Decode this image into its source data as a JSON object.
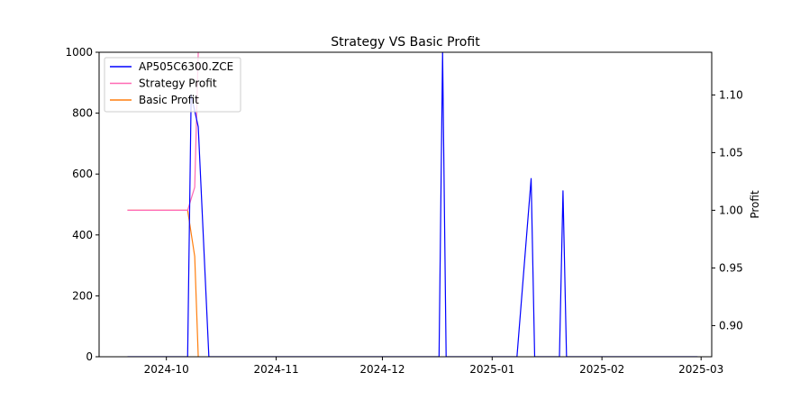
{
  "chart_data": {
    "type": "line",
    "title": "Strategy VS Basic Profit",
    "xlabel": "",
    "ylabel": "",
    "y2label": "Profit",
    "x_ticks": [
      "2024-10",
      "2024-11",
      "2024-12",
      "2025-01",
      "2025-02",
      "2025-03"
    ],
    "x_range": [
      "2024-09-12",
      "2025-03-04"
    ],
    "ylim": [
      0,
      1000
    ],
    "y_ticks": [
      "0",
      "200",
      "400",
      "600",
      "800",
      "1000"
    ],
    "y2lim": [
      0.873,
      1.137
    ],
    "y2_ticks": [
      "0.90",
      "0.95",
      "1.00",
      "1.05",
      "1.10"
    ],
    "legend_position": "top-left",
    "grid": false,
    "series": [
      {
        "name": "AP505C6300.ZCE",
        "axis": "left",
        "color": "#0000ff",
        "points": [
          [
            "2024-09-20",
            0
          ],
          [
            "2024-10-07",
            0
          ],
          [
            "2024-10-08",
            860
          ],
          [
            "2024-10-10",
            755
          ],
          [
            "2024-10-13",
            0
          ],
          [
            "2024-12-17",
            0
          ],
          [
            "2024-12-18",
            1000
          ],
          [
            "2024-12-19",
            0
          ],
          [
            "2025-01-08",
            0
          ],
          [
            "2025-01-12",
            585
          ],
          [
            "2025-01-13",
            0
          ],
          [
            "2025-01-20",
            0
          ],
          [
            "2025-01-21",
            545
          ],
          [
            "2025-01-22",
            0
          ],
          [
            "2025-02-28",
            0
          ]
        ]
      },
      {
        "name": "Strategy Profit",
        "axis": "right",
        "color": "#ff69b4",
        "points": [
          [
            "2024-09-20",
            1.0
          ],
          [
            "2024-10-07",
            1.0
          ],
          [
            "2024-10-09",
            1.02
          ],
          [
            "2024-10-10",
            1.137
          ]
        ]
      },
      {
        "name": "Basic Profit",
        "axis": "right",
        "color": "#ff7f0e",
        "points": [
          [
            "2024-09-20",
            1.0
          ],
          [
            "2024-10-07",
            1.0
          ],
          [
            "2024-10-09",
            0.96
          ],
          [
            "2024-10-10",
            0.873
          ]
        ]
      }
    ]
  }
}
